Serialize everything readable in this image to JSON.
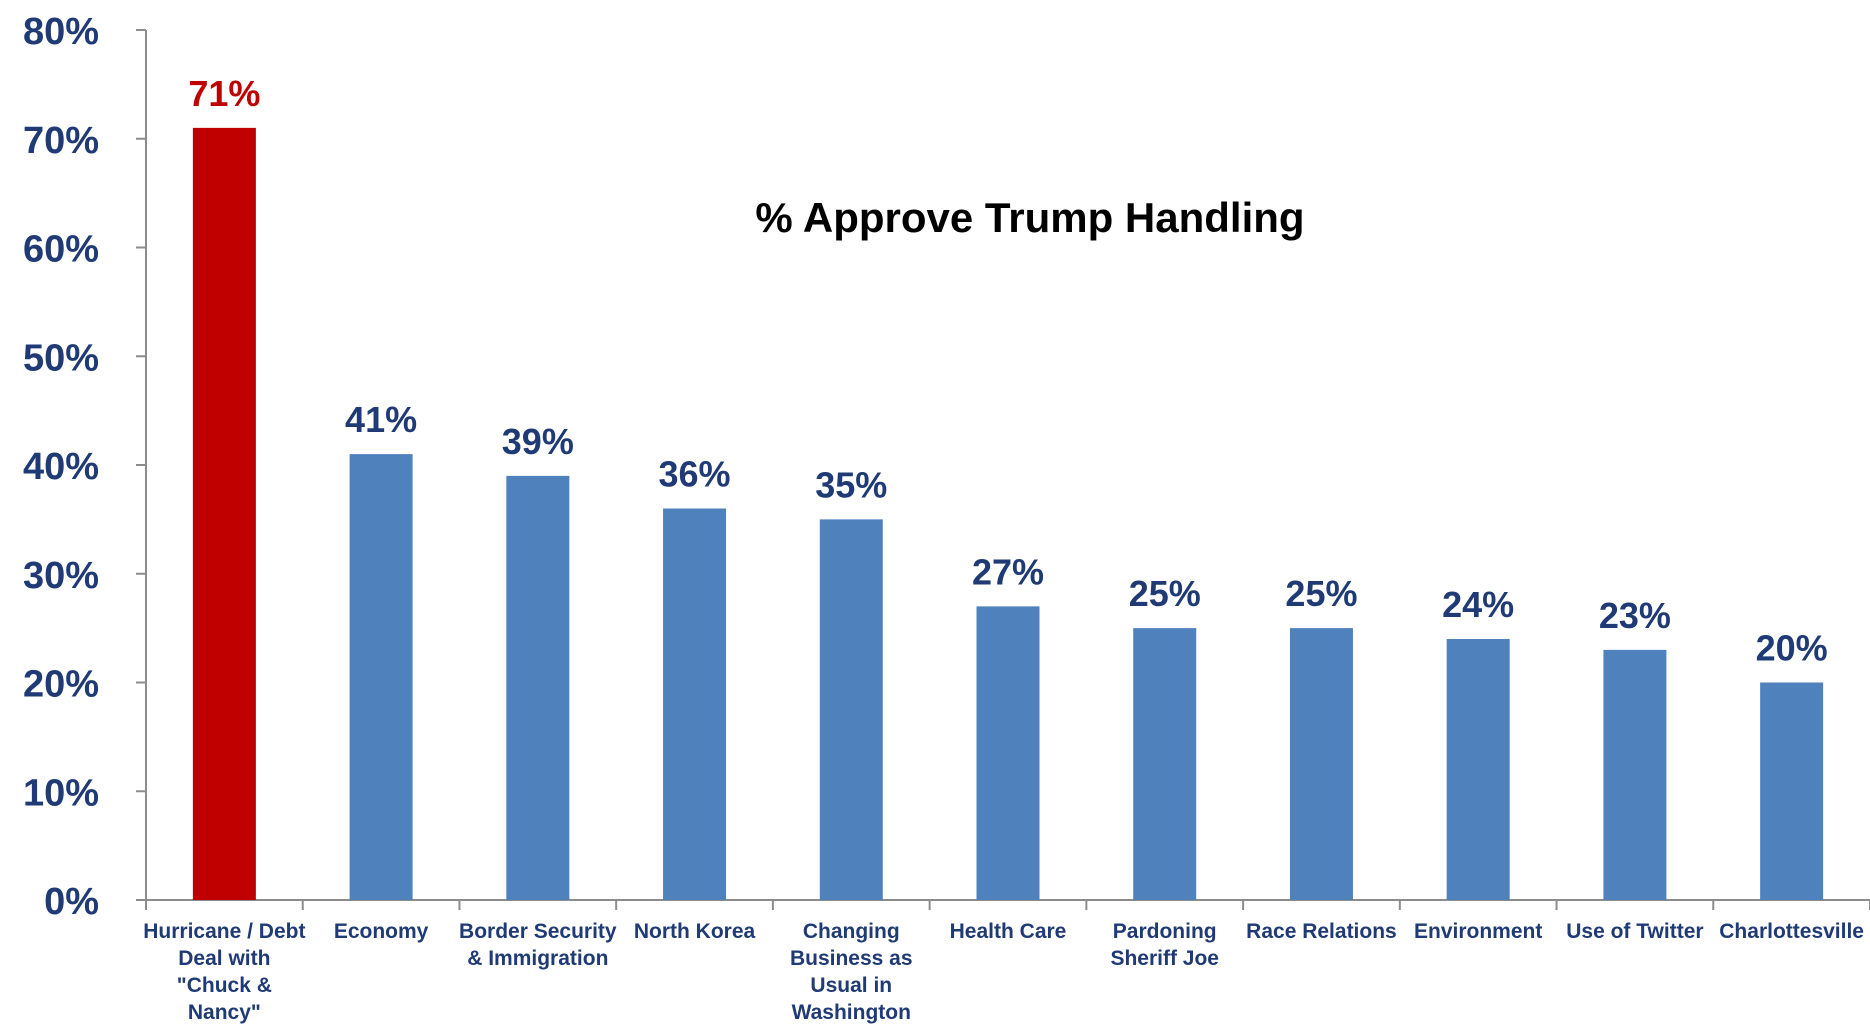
{
  "chart_data": {
    "type": "bar",
    "title": "% Approve Trump Handling",
    "xlabel": "",
    "ylabel": "",
    "ylim": [
      0,
      80
    ],
    "y_ticks": [
      "0%",
      "10%",
      "20%",
      "30%",
      "40%",
      "50%",
      "60%",
      "70%",
      "80%"
    ],
    "grid": false,
    "categories": [
      "Hurricane / Debt Deal with \"Chuck & Nancy\"",
      "Economy",
      "Border Security & Immigration",
      "North Korea",
      "Changing Business as Usual in Washington",
      "Health Care",
      "Pardoning Sheriff Joe",
      "Race Relations",
      "Environment",
      "Use of Twitter",
      "Charlottesville"
    ],
    "values": [
      71,
      41,
      39,
      36,
      35,
      27,
      25,
      25,
      24,
      23,
      20
    ],
    "data_labels": [
      "71%",
      "41%",
      "39%",
      "36%",
      "35%",
      "27%",
      "25%",
      "25%",
      "24%",
      "23%",
      "20%"
    ],
    "colors": {
      "highlight_bar": "#c00000",
      "highlight_label": "#c00000",
      "bar": "#4f81bd",
      "label": "#1f3a75",
      "axis_text": "#1f3a75",
      "category_text": "#1f3a75",
      "title": "#000000",
      "axis_line": "#8c8c8c"
    },
    "highlight_index": 0
  }
}
